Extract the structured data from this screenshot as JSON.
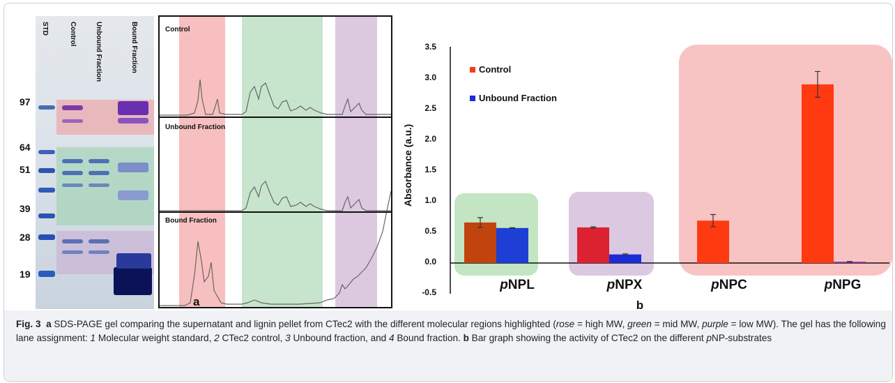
{
  "gel": {
    "lanes": [
      "STD",
      "Control",
      "Unbound Fraction",
      "Bound Fraction"
    ],
    "mw_markers": [
      "97",
      "64",
      "51",
      "39",
      "28",
      "19"
    ],
    "panel_letter": "a"
  },
  "traces": {
    "titles": [
      "Control",
      "Unbound Fraction",
      "Bound Fraction"
    ]
  },
  "chart_data": {
    "type": "bar",
    "categories_prefix": "p",
    "categories": [
      "pNPL",
      "pNPX",
      "pNPC",
      "pNPG"
    ],
    "category_suffixes": [
      "NPL",
      "NPX",
      "NPC",
      "NPG"
    ],
    "series": [
      {
        "name": "Control",
        "values": [
          0.66,
          0.58,
          0.69,
          2.91
        ],
        "errors": [
          0.08,
          0.01,
          0.1,
          0.21
        ]
      },
      {
        "name": "Unbound Fraction",
        "values": [
          0.57,
          0.14,
          0.0,
          0.02
        ],
        "errors": [
          0.005,
          0.01,
          0.0,
          0.005
        ]
      }
    ],
    "ylabel": "Absorbance (a.u.)",
    "ylim": [
      -0.5,
      3.5
    ],
    "yticks": [
      "3.5",
      "3.0",
      "2.5",
      "2.0",
      "1.5",
      "1.0",
      "0.5",
      "0.0",
      "-0.5"
    ],
    "legend_placement": "top-left",
    "panel_letter": "b",
    "colors": {
      "control": "#ff3a10",
      "unbound": "#1d2bd6"
    }
  },
  "caption": {
    "fig": "Fig. 3",
    "a": "a",
    "text1": " SDS-PAGE gel comparing the supernatant and lignin pellet from CTec2 with the different molecular regions highlighted (",
    "rose": "rose",
    "eq1": " = high MW, ",
    "green": "green",
    "eq2": " = mid MW, ",
    "purple": "purple",
    "eq3": " = low MW). The gel has the following lane assignment: ",
    "n1": "1",
    "t1": " Molecular weight standard, ",
    "n2": "2",
    "t2": " CTec2 control, ",
    "n3": "3",
    "t3": " Unbound fraction, and ",
    "n4": "4",
    "t4": " Bound fraction. ",
    "b": "b",
    "text2": " Bar graph showing the activity of CTec2 on the different ",
    "p": "p",
    "text3": "NP-substrates"
  }
}
